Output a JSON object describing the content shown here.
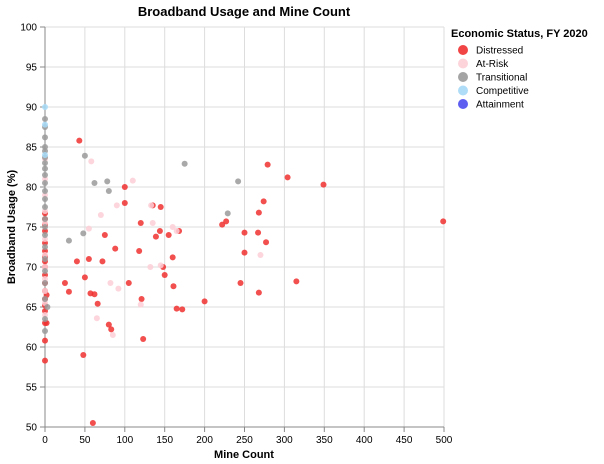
{
  "chart_data": {
    "type": "scatter",
    "title": "Broadband Usage and Mine Count",
    "xlabel": "Mine Count",
    "ylabel": "Broadband Usage (%)",
    "xlim": [
      0,
      500
    ],
    "ylim": [
      50,
      100
    ],
    "x_ticks": [
      "0",
      "50",
      "100",
      "150",
      "200",
      "250",
      "300",
      "350",
      "400",
      "450",
      "500"
    ],
    "y_ticks": [
      "50",
      "55",
      "60",
      "65",
      "70",
      "75",
      "80",
      "85",
      "90",
      "95",
      "100"
    ],
    "grid": true,
    "legend": {
      "title": "Economic Status, FY 2020",
      "placement": "right"
    },
    "series": [
      {
        "name": "Distressed",
        "color": "#f03030",
        "points": [
          [
            0,
            58.3
          ],
          [
            0,
            60.8
          ],
          [
            0,
            63
          ],
          [
            0,
            64.5
          ],
          [
            0,
            65.2
          ],
          [
            0,
            66
          ],
          [
            0,
            67
          ],
          [
            0,
            68
          ],
          [
            0,
            69
          ],
          [
            0,
            70
          ],
          [
            0,
            70.7
          ],
          [
            0,
            71.3
          ],
          [
            0,
            72
          ],
          [
            0,
            73
          ],
          [
            0,
            74.5
          ],
          [
            0,
            75.3
          ],
          [
            0,
            76
          ],
          [
            0,
            76.7
          ],
          [
            2,
            63
          ],
          [
            2,
            66.5
          ],
          [
            25,
            68
          ],
          [
            30,
            66.9
          ],
          [
            40,
            70.7
          ],
          [
            43,
            85.8
          ],
          [
            48,
            59
          ],
          [
            50,
            68.7
          ],
          [
            55,
            71
          ],
          [
            57,
            66.7
          ],
          [
            60,
            50.5
          ],
          [
            62,
            66.6
          ],
          [
            66,
            65.4
          ],
          [
            72,
            70.7
          ],
          [
            75,
            74
          ],
          [
            80,
            62.8
          ],
          [
            83,
            62.2
          ],
          [
            88,
            72.3
          ],
          [
            100,
            80
          ],
          [
            100,
            78
          ],
          [
            105,
            68
          ],
          [
            118,
            72
          ],
          [
            120,
            75.5
          ],
          [
            121,
            66
          ],
          [
            123,
            61
          ],
          [
            135,
            77.7
          ],
          [
            139,
            73.8
          ],
          [
            144,
            74.5
          ],
          [
            145,
            77.5
          ],
          [
            148,
            70
          ],
          [
            150,
            69
          ],
          [
            155,
            74
          ],
          [
            160,
            71.2
          ],
          [
            161,
            67.6
          ],
          [
            165,
            64.8
          ],
          [
            168,
            74.5
          ],
          [
            172,
            64.7
          ],
          [
            200,
            65.7
          ],
          [
            222,
            75.3
          ],
          [
            227,
            75.7
          ],
          [
            245,
            68
          ],
          [
            250,
            71.8
          ],
          [
            250,
            74.3
          ],
          [
            267,
            74.3
          ],
          [
            268,
            76.8
          ],
          [
            268,
            66.8
          ],
          [
            274,
            78.2
          ],
          [
            277,
            73.1
          ],
          [
            279,
            82.8
          ],
          [
            304,
            81.2
          ],
          [
            315,
            68.2
          ],
          [
            349,
            80.3
          ],
          [
            499,
            75.7
          ]
        ]
      },
      {
        "name": "At-Risk",
        "color": "#fccfd6",
        "points": [
          [
            0,
            64
          ],
          [
            0,
            65.5
          ],
          [
            0,
            67
          ],
          [
            0,
            68.5
          ],
          [
            0,
            70
          ],
          [
            0,
            71.5
          ],
          [
            0,
            73.5
          ],
          [
            0,
            75.5
          ],
          [
            0,
            77
          ],
          [
            0,
            79
          ],
          [
            0,
            81
          ],
          [
            0,
            83.5
          ],
          [
            55,
            74.8
          ],
          [
            58,
            83.2
          ],
          [
            65,
            63.6
          ],
          [
            70,
            76.5
          ],
          [
            82,
            68
          ],
          [
            85,
            61.5
          ],
          [
            90,
            77.7
          ],
          [
            92,
            67.3
          ],
          [
            110,
            80.8
          ],
          [
            120,
            65.3
          ],
          [
            132,
            70
          ],
          [
            133,
            77.7
          ],
          [
            135,
            75.5
          ],
          [
            145,
            70.2
          ],
          [
            160,
            75
          ],
          [
            165,
            74.5
          ],
          [
            270,
            71.5
          ]
        ]
      },
      {
        "name": "Transitional",
        "color": "#9a9a9a",
        "points": [
          [
            0,
            62
          ],
          [
            0,
            63.5
          ],
          [
            0,
            66
          ],
          [
            0,
            68
          ],
          [
            0,
            69.5
          ],
          [
            0,
            71
          ],
          [
            0,
            72.5
          ],
          [
            0,
            74
          ],
          [
            0,
            75
          ],
          [
            0,
            76
          ],
          [
            0,
            77.5
          ],
          [
            0,
            78.5
          ],
          [
            0,
            79.5
          ],
          [
            0,
            80.5
          ],
          [
            0,
            81.5
          ],
          [
            0,
            82.3
          ],
          [
            0,
            83
          ],
          [
            0,
            83.7
          ],
          [
            0,
            84.5
          ],
          [
            0,
            85
          ],
          [
            0,
            86.2
          ],
          [
            0,
            87.5
          ],
          [
            0,
            88.5
          ],
          [
            3,
            65
          ],
          [
            30,
            73.3
          ],
          [
            48,
            74.2
          ],
          [
            50,
            83.9
          ],
          [
            62,
            80.5
          ],
          [
            78,
            80.7
          ],
          [
            80,
            79.5
          ],
          [
            175,
            82.9
          ],
          [
            242,
            80.7
          ],
          [
            229,
            76.7
          ]
        ]
      },
      {
        "name": "Competitive",
        "color": "#a6d9f7",
        "points": [
          [
            0,
            87.8
          ],
          [
            0,
            90
          ],
          [
            0,
            84
          ]
        ]
      },
      {
        "name": "Attainment",
        "color": "#4c4cf0",
        "points": []
      }
    ]
  }
}
